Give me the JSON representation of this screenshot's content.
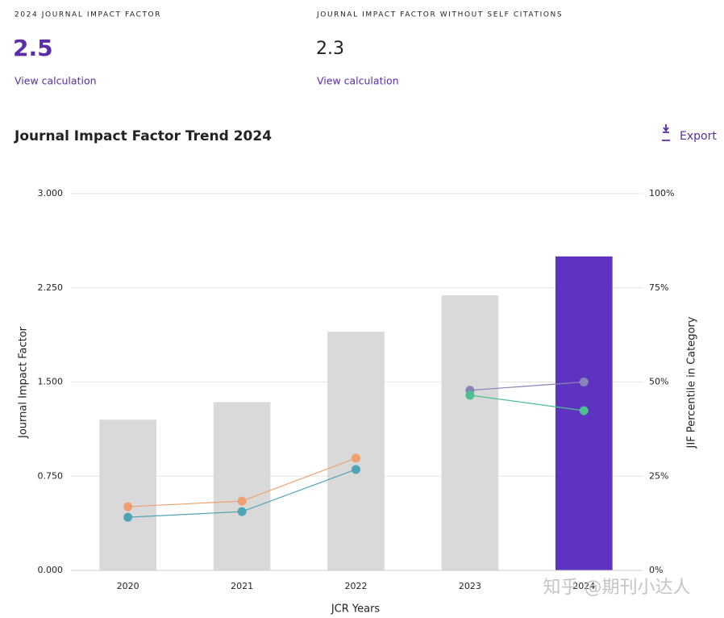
{
  "metrics": [
    {
      "label": "2024 JOURNAL IMPACT FACTOR",
      "value": 2.5,
      "link": "View calculation"
    },
    {
      "label": "JOURNAL IMPACT FACTOR WITHOUT SELF CITATIONS",
      "value": 2.3,
      "link": "View calculation"
    }
  ],
  "actions": {
    "export": "Export"
  },
  "watermark": "知乎 @期刊小达人",
  "chart_data": {
    "type": "bar",
    "title": "Journal Impact Factor Trend 2024",
    "x_label": "JCR Years",
    "y_label": "Journal Impact Factor",
    "y2_label": "JIF Percentile in Category",
    "categories": [
      "2020",
      "2021",
      "2022",
      "2023",
      "2024"
    ],
    "values": [
      1.2,
      1.34,
      1.9,
      2.19,
      2.5
    ],
    "colors": [
      "#d9d9d9",
      "#d9d9d9",
      "#d9d9d9",
      "#d9d9d9",
      "#5e33bf"
    ],
    "series": [
      {
        "type": "line",
        "axis": "y2",
        "color": "#f0a070",
        "values": [
          16.9,
          18.4,
          29.8,
          null,
          null
        ]
      },
      {
        "type": "line",
        "axis": "y2",
        "color": "#4ea3b5",
        "values": [
          14.1,
          15.6,
          26.8,
          null,
          null
        ]
      },
      {
        "type": "line",
        "axis": "y2",
        "color": "#8a83b8",
        "values": [
          null,
          null,
          null,
          47.8,
          50
        ]
      },
      {
        "type": "line",
        "axis": "y2",
        "color": "#4cc08e",
        "values": [
          null,
          null,
          null,
          46.5,
          42.4
        ]
      }
    ],
    "ylim": [
      0,
      3
    ],
    "yticks": [
      {
        "value": 0,
        "label": "0.000"
      },
      {
        "value": 0.75,
        "label": "0.750"
      },
      {
        "value": 1.5,
        "label": "1.500"
      },
      {
        "value": 2.25,
        "label": "2.250"
      },
      {
        "value": 3,
        "label": "3.000"
      }
    ],
    "y2lim": [
      0,
      100
    ],
    "y2ticks": [
      {
        "value": 0,
        "label": "0%"
      },
      {
        "value": 25,
        "label": "25%"
      },
      {
        "value": 50,
        "label": "50%"
      },
      {
        "value": 75,
        "label": "75%"
      },
      {
        "value": 100,
        "label": "100%"
      }
    ],
    "grid": true
  }
}
